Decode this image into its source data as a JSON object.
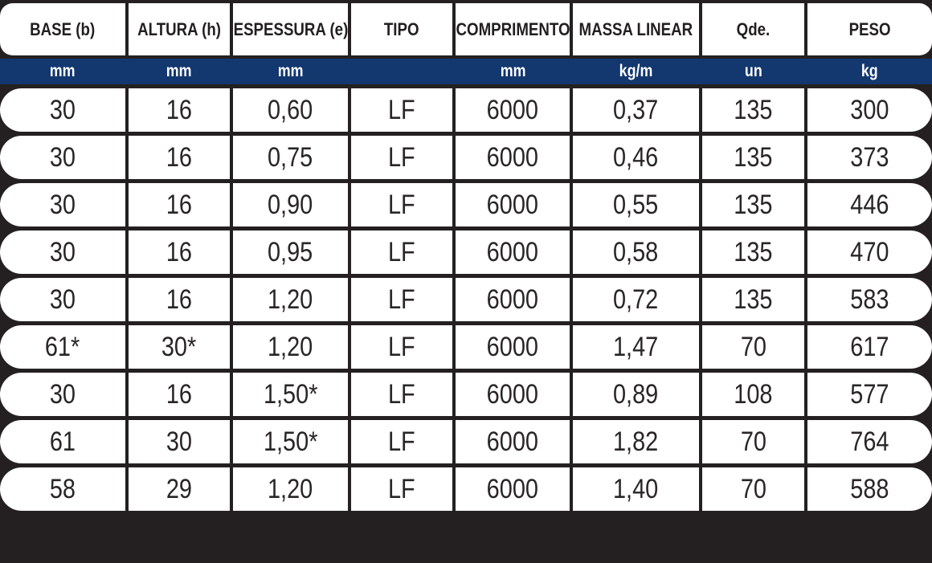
{
  "colors": {
    "accent_navy": "#13376f",
    "page_background": "#242021",
    "cell_background": "#ffffff",
    "header_text": "#231f20",
    "data_text": "#2a2526",
    "unit_text": "#ffffff"
  },
  "table": {
    "columns": [
      {
        "label": "BASE (b)",
        "unit": "mm"
      },
      {
        "label": "ALTURA (h)",
        "unit": "mm"
      },
      {
        "label": "ESPESSURA (e)",
        "unit": "mm"
      },
      {
        "label": "TIPO",
        "unit": ""
      },
      {
        "label": "COMPRIMENTO",
        "unit": "mm"
      },
      {
        "label": "MASSA LINEAR",
        "unit": "kg/m"
      },
      {
        "label": "Qde.",
        "unit": "un"
      },
      {
        "label": "PESO",
        "unit": "kg"
      }
    ],
    "rows": [
      [
        "30",
        "16",
        "0,60",
        "LF",
        "6000",
        "0,37",
        "135",
        "300"
      ],
      [
        "30",
        "16",
        "0,75",
        "LF",
        "6000",
        "0,46",
        "135",
        "373"
      ],
      [
        "30",
        "16",
        "0,90",
        "LF",
        "6000",
        "0,55",
        "135",
        "446"
      ],
      [
        "30",
        "16",
        "0,95",
        "LF",
        "6000",
        "0,58",
        "135",
        "470"
      ],
      [
        "30",
        "16",
        "1,20",
        "LF",
        "6000",
        "0,72",
        "135",
        "583"
      ],
      [
        "61*",
        "30*",
        "1,20",
        "LF",
        "6000",
        "1,47",
        "70",
        "617"
      ],
      [
        "30",
        "16",
        "1,50*",
        "LF",
        "6000",
        "0,89",
        "108",
        "577"
      ],
      [
        "61",
        "30",
        "1,50*",
        "LF",
        "6000",
        "1,82",
        "70",
        "764"
      ],
      [
        "58",
        "29",
        "1,20",
        "LF",
        "6000",
        "1,40",
        "70",
        "588"
      ]
    ]
  }
}
